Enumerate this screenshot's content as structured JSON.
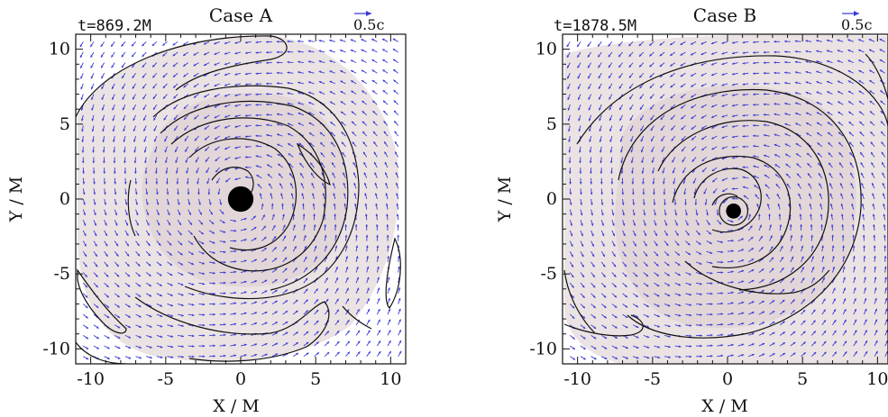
{
  "chart_data": [
    {
      "type": "scatter",
      "subtype": "velocity-field-with-density-contours",
      "title": "Case A",
      "time_label": "t=869.2M",
      "scale_label": "0.5c",
      "xlabel": "X / M",
      "ylabel": "Y / M",
      "xlim": [
        -11,
        11
      ],
      "ylim": [
        -11,
        11
      ],
      "xticks": [
        "-10",
        "-5",
        "0",
        "5",
        "10"
      ],
      "yticks": [
        "10",
        "5",
        "0",
        "-5",
        "-10"
      ],
      "black_hole": {
        "x": 0.0,
        "y": 0.0,
        "radius": 0.85
      },
      "colors": {
        "arrows": "#3a3ad6",
        "contours": "#111111",
        "shading": "#ebe3e3",
        "inner_shading": "#e2d6d8"
      }
    },
    {
      "type": "scatter",
      "subtype": "velocity-field-with-density-contours",
      "title": "Case B",
      "time_label": "t=1878.5M",
      "scale_label": "0.5c",
      "xlabel": "X / M",
      "ylabel": "Y / M",
      "xlim": [
        -11,
        11
      ],
      "ylim": [
        -11,
        11
      ],
      "xticks": [
        "-10",
        "-5",
        "0",
        "5",
        "10"
      ],
      "yticks": [
        "10",
        "5",
        "0",
        "-5",
        "-10"
      ],
      "black_hole": {
        "x": 0.4,
        "y": -0.8,
        "radius": 0.5
      },
      "colors": {
        "arrows": "#3a3ad6",
        "contours": "#111111",
        "shading": "#ebe3e3",
        "inner_shading": "#e2d6d8"
      }
    }
  ]
}
